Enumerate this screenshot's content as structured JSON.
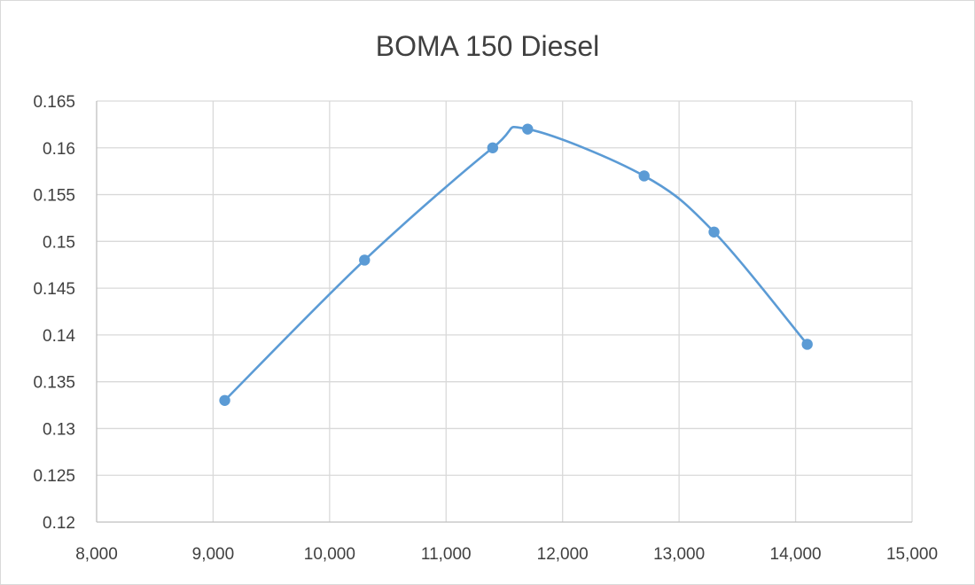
{
  "chart_data": {
    "type": "scatter",
    "title": "BOMA 150 Diesel",
    "xlabel": "",
    "ylabel": "",
    "xlim": [
      8000,
      15000
    ],
    "ylim": [
      0.12,
      0.165
    ],
    "x_ticks": [
      8000,
      9000,
      10000,
      11000,
      12000,
      13000,
      14000,
      15000
    ],
    "x_tick_labels": [
      "8,000",
      "9,000",
      "10,000",
      "11,000",
      "12,000",
      "13,000",
      "14,000",
      "15,000"
    ],
    "y_ticks": [
      0.12,
      0.125,
      0.13,
      0.135,
      0.14,
      0.145,
      0.15,
      0.155,
      0.16,
      0.165
    ],
    "y_tick_labels": [
      "0.12",
      "0.125",
      "0.13",
      "0.135",
      "0.14",
      "0.145",
      "0.15",
      "0.155",
      "0.16",
      "0.165"
    ],
    "grid": true,
    "smoothed_line": true,
    "legend": "none",
    "series": [
      {
        "color": "#5b9bd5",
        "x": [
          9100,
          10300,
          11400,
          11700,
          12700,
          13300,
          14100
        ],
        "y": [
          0.133,
          0.148,
          0.16,
          0.162,
          0.157,
          0.151,
          0.139
        ]
      }
    ]
  }
}
